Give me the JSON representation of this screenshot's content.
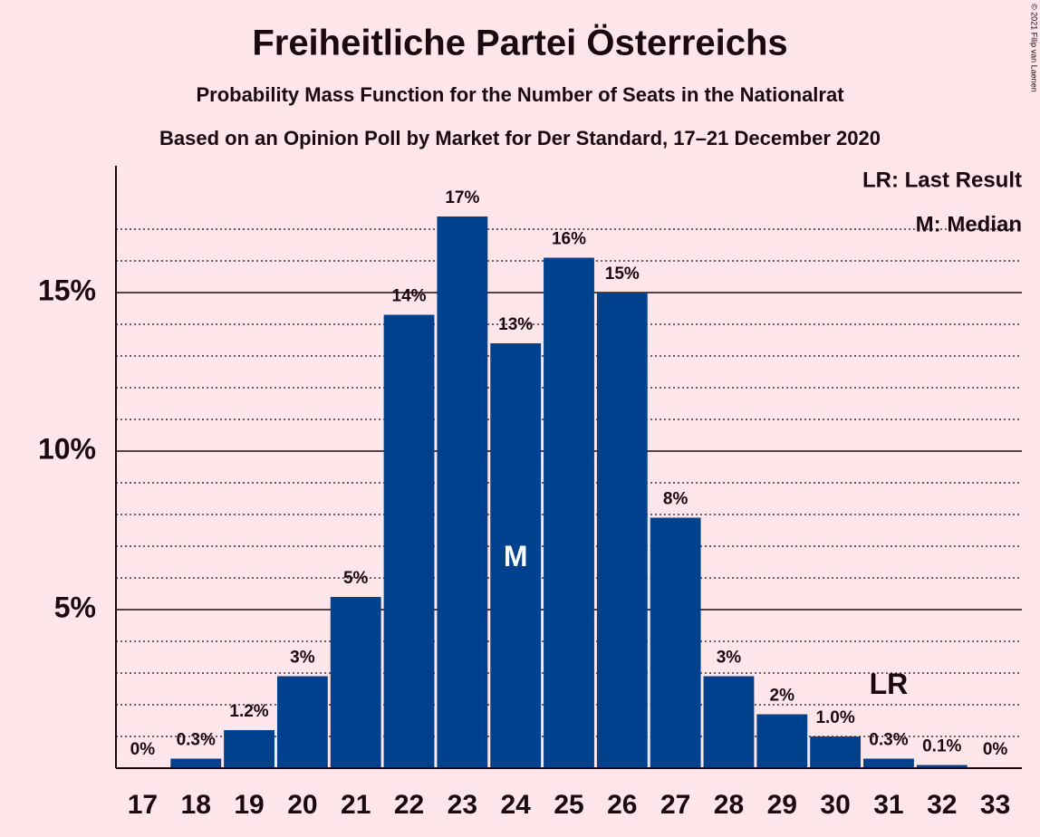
{
  "chart_data": {
    "type": "bar",
    "title": "Freiheitliche Partei Österreichs",
    "subtitle": "Probability Mass Function for the Number of Seats in the Nationalrat",
    "subtitle2": "Based on an Opinion Poll by Market for Der Standard, 17–21 December 2020",
    "copyright": "© 2021 Filip van Laenen",
    "legend_lines": [
      "LR: Last Result",
      "M: Median"
    ],
    "categories": [
      "17",
      "18",
      "19",
      "20",
      "21",
      "22",
      "23",
      "24",
      "25",
      "26",
      "27",
      "28",
      "29",
      "30",
      "31",
      "32",
      "33"
    ],
    "values": [
      0,
      0.3,
      1.2,
      2.9,
      5.4,
      14.3,
      17.4,
      13.4,
      16.1,
      15.0,
      7.9,
      2.9,
      1.7,
      1.0,
      0.3,
      0.1,
      0
    ],
    "value_labels": [
      "0%",
      "0.3%",
      "1.2%",
      "3%",
      "5%",
      "14%",
      "17%",
      "13%",
      "16%",
      "15%",
      "8%",
      "3%",
      "2%",
      "1.0%",
      "0.3%",
      "0.1%",
      "0%"
    ],
    "color": "#00418e",
    "ylim": [
      0,
      19
    ],
    "yticks": [
      {
        "value": 5,
        "label": "5%"
      },
      {
        "value": 10,
        "label": "10%"
      },
      {
        "value": 15,
        "label": "15%"
      }
    ],
    "minor_yticks": [
      1,
      2,
      3,
      4,
      6,
      7,
      8,
      9,
      11,
      12,
      13,
      14,
      16,
      17
    ],
    "annotations": [
      {
        "text": "M",
        "category": "24",
        "color": "#ffffff"
      },
      {
        "text": "LR",
        "category": "31",
        "color": "#1a0a10"
      }
    ]
  }
}
